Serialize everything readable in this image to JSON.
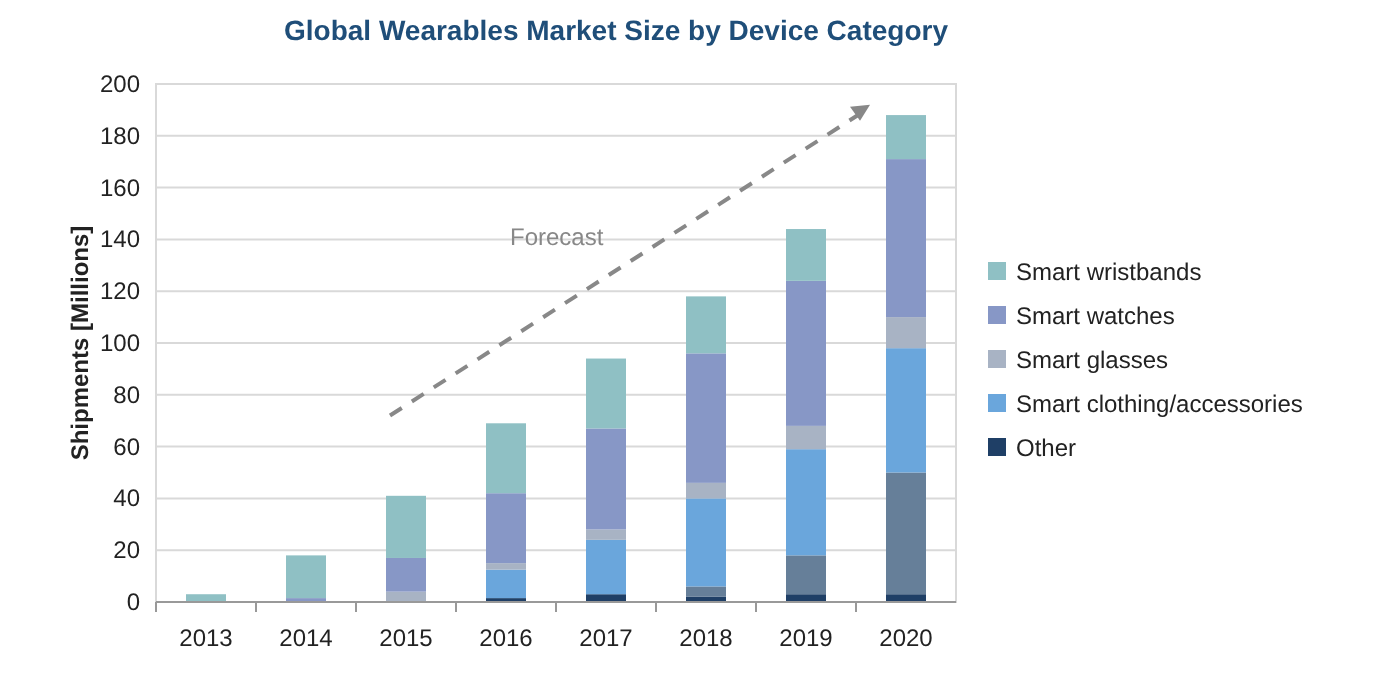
{
  "chart_data": {
    "type": "bar",
    "stacked": true,
    "title": "Global Wearables Market Size by Device Category",
    "ylabel": "Shipments [Millions]",
    "categories": [
      "2013",
      "2014",
      "2015",
      "2016",
      "2017",
      "2018",
      "2019",
      "2020"
    ],
    "series": [
      {
        "name": "Other",
        "color": "#1f3f66",
        "values": [
          0,
          0,
          0,
          1.5,
          3,
          2,
          3,
          3
        ]
      },
      {
        "color": "#667f99",
        "values": [
          0,
          0,
          0,
          0,
          0,
          4,
          15,
          47
        ]
      },
      {
        "name": "Smart clothing/accessories",
        "color": "#6aa6dc",
        "values": [
          0,
          0,
          0,
          11,
          21,
          34,
          41,
          48
        ]
      },
      {
        "name": "Smart glasses",
        "color": "#a8b3c4",
        "values": [
          0,
          0,
          4,
          2.5,
          4,
          6,
          9,
          12
        ]
      },
      {
        "name": "Smart watches",
        "color": "#8797c6",
        "values": [
          0,
          1.5,
          13,
          27,
          39,
          50,
          56,
          61
        ]
      },
      {
        "name": "Smart wristbands",
        "color": "#8fc0c4",
        "values": [
          3,
          16.5,
          24,
          27,
          27,
          22,
          20,
          17
        ]
      }
    ],
    "ylim": [
      0,
      200
    ],
    "yticks": [
      0,
      20,
      40,
      60,
      80,
      100,
      120,
      140,
      160,
      180,
      200
    ],
    "grid": "y",
    "legend": "right",
    "annotations": [
      "Forecast"
    ]
  }
}
